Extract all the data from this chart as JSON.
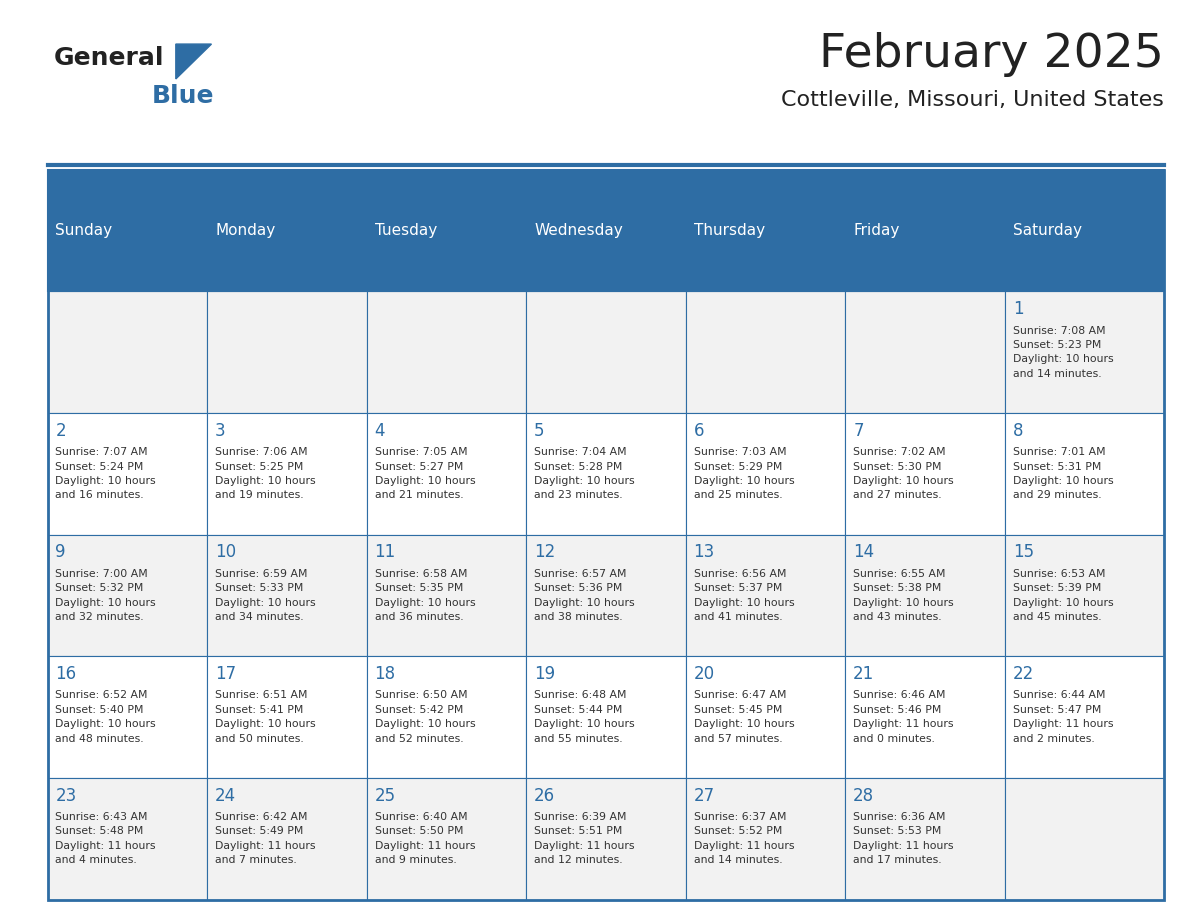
{
  "title": "February 2025",
  "subtitle": "Cottleville, Missouri, United States",
  "header_bg": "#2E6DA4",
  "header_text_color": "#FFFFFF",
  "cell_bg_odd": "#F2F2F2",
  "cell_bg_even": "#FFFFFF",
  "day_number_color": "#2E6DA4",
  "info_text_color": "#333333",
  "border_color": "#2E6DA4",
  "days_of_week": [
    "Sunday",
    "Monday",
    "Tuesday",
    "Wednesday",
    "Thursday",
    "Friday",
    "Saturday"
  ],
  "weeks": [
    [
      {
        "day": null,
        "info": ""
      },
      {
        "day": null,
        "info": ""
      },
      {
        "day": null,
        "info": ""
      },
      {
        "day": null,
        "info": ""
      },
      {
        "day": null,
        "info": ""
      },
      {
        "day": null,
        "info": ""
      },
      {
        "day": 1,
        "info": "Sunrise: 7:08 AM\nSunset: 5:23 PM\nDaylight: 10 hours\nand 14 minutes."
      }
    ],
    [
      {
        "day": 2,
        "info": "Sunrise: 7:07 AM\nSunset: 5:24 PM\nDaylight: 10 hours\nand 16 minutes."
      },
      {
        "day": 3,
        "info": "Sunrise: 7:06 AM\nSunset: 5:25 PM\nDaylight: 10 hours\nand 19 minutes."
      },
      {
        "day": 4,
        "info": "Sunrise: 7:05 AM\nSunset: 5:27 PM\nDaylight: 10 hours\nand 21 minutes."
      },
      {
        "day": 5,
        "info": "Sunrise: 7:04 AM\nSunset: 5:28 PM\nDaylight: 10 hours\nand 23 minutes."
      },
      {
        "day": 6,
        "info": "Sunrise: 7:03 AM\nSunset: 5:29 PM\nDaylight: 10 hours\nand 25 minutes."
      },
      {
        "day": 7,
        "info": "Sunrise: 7:02 AM\nSunset: 5:30 PM\nDaylight: 10 hours\nand 27 minutes."
      },
      {
        "day": 8,
        "info": "Sunrise: 7:01 AM\nSunset: 5:31 PM\nDaylight: 10 hours\nand 29 minutes."
      }
    ],
    [
      {
        "day": 9,
        "info": "Sunrise: 7:00 AM\nSunset: 5:32 PM\nDaylight: 10 hours\nand 32 minutes."
      },
      {
        "day": 10,
        "info": "Sunrise: 6:59 AM\nSunset: 5:33 PM\nDaylight: 10 hours\nand 34 minutes."
      },
      {
        "day": 11,
        "info": "Sunrise: 6:58 AM\nSunset: 5:35 PM\nDaylight: 10 hours\nand 36 minutes."
      },
      {
        "day": 12,
        "info": "Sunrise: 6:57 AM\nSunset: 5:36 PM\nDaylight: 10 hours\nand 38 minutes."
      },
      {
        "day": 13,
        "info": "Sunrise: 6:56 AM\nSunset: 5:37 PM\nDaylight: 10 hours\nand 41 minutes."
      },
      {
        "day": 14,
        "info": "Sunrise: 6:55 AM\nSunset: 5:38 PM\nDaylight: 10 hours\nand 43 minutes."
      },
      {
        "day": 15,
        "info": "Sunrise: 6:53 AM\nSunset: 5:39 PM\nDaylight: 10 hours\nand 45 minutes."
      }
    ],
    [
      {
        "day": 16,
        "info": "Sunrise: 6:52 AM\nSunset: 5:40 PM\nDaylight: 10 hours\nand 48 minutes."
      },
      {
        "day": 17,
        "info": "Sunrise: 6:51 AM\nSunset: 5:41 PM\nDaylight: 10 hours\nand 50 minutes."
      },
      {
        "day": 18,
        "info": "Sunrise: 6:50 AM\nSunset: 5:42 PM\nDaylight: 10 hours\nand 52 minutes."
      },
      {
        "day": 19,
        "info": "Sunrise: 6:48 AM\nSunset: 5:44 PM\nDaylight: 10 hours\nand 55 minutes."
      },
      {
        "day": 20,
        "info": "Sunrise: 6:47 AM\nSunset: 5:45 PM\nDaylight: 10 hours\nand 57 minutes."
      },
      {
        "day": 21,
        "info": "Sunrise: 6:46 AM\nSunset: 5:46 PM\nDaylight: 11 hours\nand 0 minutes."
      },
      {
        "day": 22,
        "info": "Sunrise: 6:44 AM\nSunset: 5:47 PM\nDaylight: 11 hours\nand 2 minutes."
      }
    ],
    [
      {
        "day": 23,
        "info": "Sunrise: 6:43 AM\nSunset: 5:48 PM\nDaylight: 11 hours\nand 4 minutes."
      },
      {
        "day": 24,
        "info": "Sunrise: 6:42 AM\nSunset: 5:49 PM\nDaylight: 11 hours\nand 7 minutes."
      },
      {
        "day": 25,
        "info": "Sunrise: 6:40 AM\nSunset: 5:50 PM\nDaylight: 11 hours\nand 9 minutes."
      },
      {
        "day": 26,
        "info": "Sunrise: 6:39 AM\nSunset: 5:51 PM\nDaylight: 11 hours\nand 12 minutes."
      },
      {
        "day": 27,
        "info": "Sunrise: 6:37 AM\nSunset: 5:52 PM\nDaylight: 11 hours\nand 14 minutes."
      },
      {
        "day": 28,
        "info": "Sunrise: 6:36 AM\nSunset: 5:53 PM\nDaylight: 11 hours\nand 17 minutes."
      },
      {
        "day": null,
        "info": ""
      }
    ]
  ],
  "logo_text_general": "General",
  "logo_text_blue": "Blue",
  "logo_triangle_color": "#2E6DA4"
}
